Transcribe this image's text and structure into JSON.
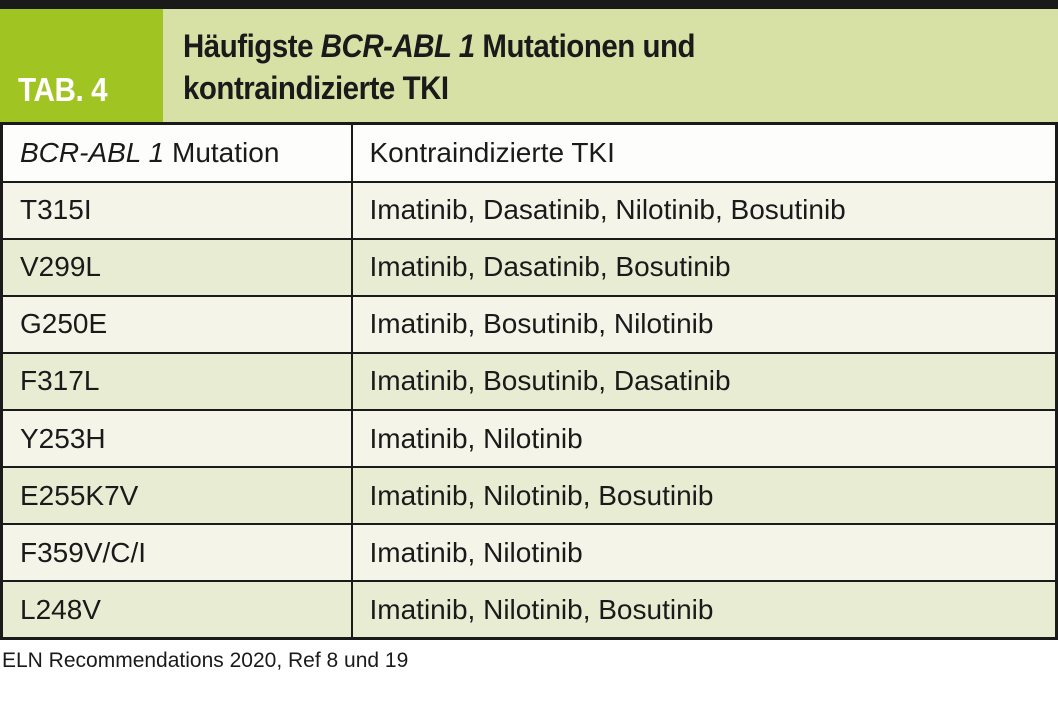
{
  "colors": {
    "accent_green": "#a0c422",
    "title_background": "#d7e0a5",
    "row_offwhite": "#f4f4e8",
    "row_green": "#e8ecd3",
    "header_row_background": "#fdfdfb",
    "border_black": "#1a1a1a",
    "tab_label_text": "#ffffff"
  },
  "header": {
    "tab_label": "TAB. 4",
    "title": {
      "line1_prefix": "Häufigste ",
      "line1_italic": "BCR-ABL 1",
      "line1_suffix": " Mutationen und",
      "line2": "kontraindizierte TKI"
    }
  },
  "table": {
    "header": {
      "col1_italic": "BCR-ABL 1",
      "col1_rest": " Mutation",
      "col2": "Kontraindizierte TKI"
    },
    "rows": [
      {
        "mutation": "T315I",
        "tki": "Imatinib, Dasatinib, Nilotinib, Bosutinib"
      },
      {
        "mutation": "V299L",
        "tki": "Imatinib, Dasatinib, Bosutinib"
      },
      {
        "mutation": "G250E",
        "tki": "Imatinib, Bosutinib, Nilotinib"
      },
      {
        "mutation": "F317L",
        "tki": "Imatinib, Bosutinib, Dasatinib"
      },
      {
        "mutation": "Y253H",
        "tki": "Imatinib, Nilotinib"
      },
      {
        "mutation": "E255K7V",
        "tki": "Imatinib, Nilotinib, Bosutinib"
      },
      {
        "mutation": "F359V/C/I",
        "tki": "Imatinib, Nilotinib"
      },
      {
        "mutation": "L248V",
        "tki": "Imatinib, Nilotinib, Bosutinib"
      }
    ]
  },
  "footer": {
    "source": "ELN Recommendations 2020, Ref 8 und 19"
  }
}
